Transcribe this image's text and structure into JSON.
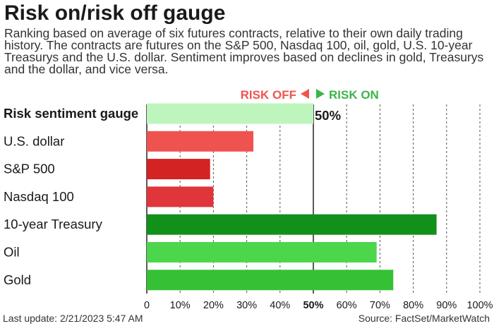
{
  "title": "Risk on/risk off gauge",
  "subtitle": "Ranking based on average of six futures contracts, relative to their own daily trading history. The contracts are futures on the S&P 500, Nasdaq 100, oil, gold, U.S. 10-year Treasurys and the U.S. dollar. Sentiment improves based on declines in gold, Treasurys and the dollar, and vice versa.",
  "legend": {
    "risk_off": "RISK OFF",
    "risk_on": "RISK ON",
    "risk_off_color": "#f0544f",
    "risk_on_color": "#3cb44a"
  },
  "footer": {
    "last_update": "Last update: 2/21/2023 5:47 AM",
    "source": "Source: FactSet/MarketWatch"
  },
  "chart_data": {
    "type": "bar",
    "orientation": "horizontal",
    "categories": [
      "Risk sentiment gauge",
      "U.S. dollar",
      "S&P 500",
      "Nasdaq 100",
      "10-year Treasury",
      "Oil",
      "Gold"
    ],
    "values": [
      50,
      32,
      19,
      20,
      87,
      69,
      74
    ],
    "colors": [
      "#bdf5bd",
      "#ef5350",
      "#d32323",
      "#e0353a",
      "#11901a",
      "#4cd64c",
      "#35c135"
    ],
    "value_labels": [
      "50%",
      "",
      "",
      "",
      "",
      "",
      ""
    ],
    "xlim": [
      0,
      100
    ],
    "xticks": [
      "0",
      "10%",
      "20%",
      "30%",
      "40%",
      "50%",
      "60%",
      "70%",
      "80%",
      "90%",
      "100%"
    ],
    "grid": "vertical dashed",
    "midline": 50
  }
}
